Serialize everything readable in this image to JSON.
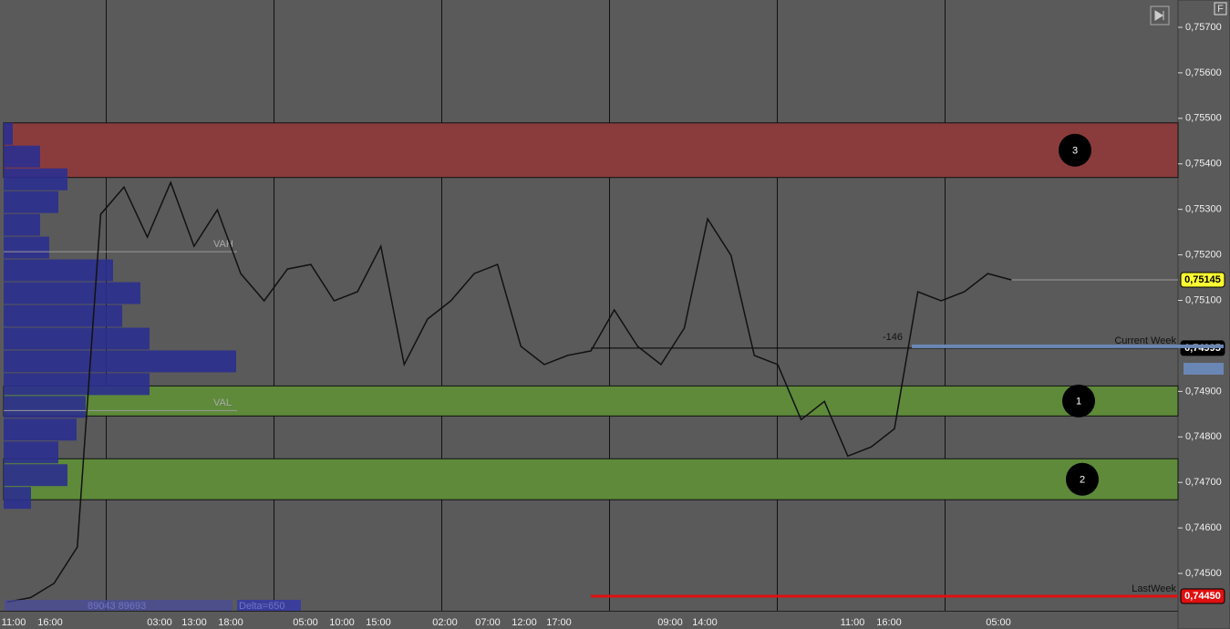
{
  "chart_data": {
    "type": "line",
    "ylim": [
      0.74418,
      0.7576
    ],
    "yticks": [
      {
        "value": 0.757,
        "label": "0,75700"
      },
      {
        "value": 0.756,
        "label": "0,75600"
      },
      {
        "value": 0.755,
        "label": "0,75500"
      },
      {
        "value": 0.754,
        "label": "0,75400"
      },
      {
        "value": 0.753,
        "label": "0,75300"
      },
      {
        "value": 0.752,
        "label": "0,75200"
      },
      {
        "value": 0.751,
        "label": "0,75100"
      },
      {
        "value": 0.749,
        "label": "0,74900"
      },
      {
        "value": 0.748,
        "label": "0,74800"
      },
      {
        "value": 0.747,
        "label": "0,74700"
      },
      {
        "value": 0.746,
        "label": "0,74600"
      },
      {
        "value": 0.745,
        "label": "0,74500"
      }
    ],
    "xtick_labels": [
      "11:00",
      "16:00",
      "03:00",
      "13:00",
      "18:00",
      "05:00",
      "10:00",
      "15:00",
      "02:00",
      "07:00",
      "12:00",
      "17:00",
      "09:00",
      "14:00",
      "11:00",
      "16:00",
      "05:00"
    ],
    "series": [
      {
        "color": "#111111",
        "values": [
          0.74437,
          0.74447,
          0.74478,
          0.74558,
          0.75289,
          0.75349,
          0.75239,
          0.75359,
          0.75219,
          0.75299,
          0.75159,
          0.75099,
          0.75169,
          0.75179,
          0.75099,
          0.75119,
          0.75219,
          0.74959,
          0.75059,
          0.75099,
          0.75159,
          0.75179,
          0.74999,
          0.74959,
          0.74979,
          0.74989,
          0.75079,
          0.74999,
          0.74959,
          0.75039,
          0.75279,
          0.75199,
          0.74979,
          0.74959,
          0.74838,
          0.74878,
          0.74758,
          0.74778,
          0.74818,
          0.75119,
          0.75099,
          0.75119,
          0.75159,
          0.75145
        ]
      }
    ],
    "zones": [
      {
        "label": "3",
        "low": 0.7537,
        "high": 0.7549,
        "color": "#8a3c3c"
      },
      {
        "label": "1",
        "low": 0.74846,
        "high": 0.74912,
        "color": "#5e8a3a"
      },
      {
        "label": "2",
        "low": 0.74662,
        "high": 0.74752,
        "color": "#5e8a3a"
      }
    ],
    "volume_profile": {
      "color": "#2b2f8f",
      "prices": [
        0.7549,
        0.7544,
        0.7539,
        0.7534,
        0.7529,
        0.7524,
        0.7519,
        0.7514,
        0.7509,
        0.7504,
        0.7499,
        0.7494,
        0.7489,
        0.7484,
        0.7479,
        0.7474,
        0.7469
      ],
      "volumes": [
        10,
        40,
        70,
        60,
        40,
        50,
        120,
        150,
        130,
        160,
        255,
        160,
        90,
        80,
        60,
        70,
        30
      ]
    },
    "value_area": [
      {
        "label": "VAH",
        "value": 0.75207
      },
      {
        "label": "VAL",
        "value": 0.74858
      }
    ],
    "levels": [
      {
        "value": 0.75145,
        "value_label": "0,75145",
        "color": "#ffff33"
      },
      {
        "label": "Current Week",
        "value": 0.74995,
        "value_label": "0,74995",
        "color": "#000000"
      },
      {
        "label": "LastWeek",
        "value": 0.7445,
        "value_label": "0,74450",
        "color": "#e01010"
      }
    ],
    "annotations": [
      "-146",
      "Delta=650",
      "89043 89693"
    ]
  }
}
